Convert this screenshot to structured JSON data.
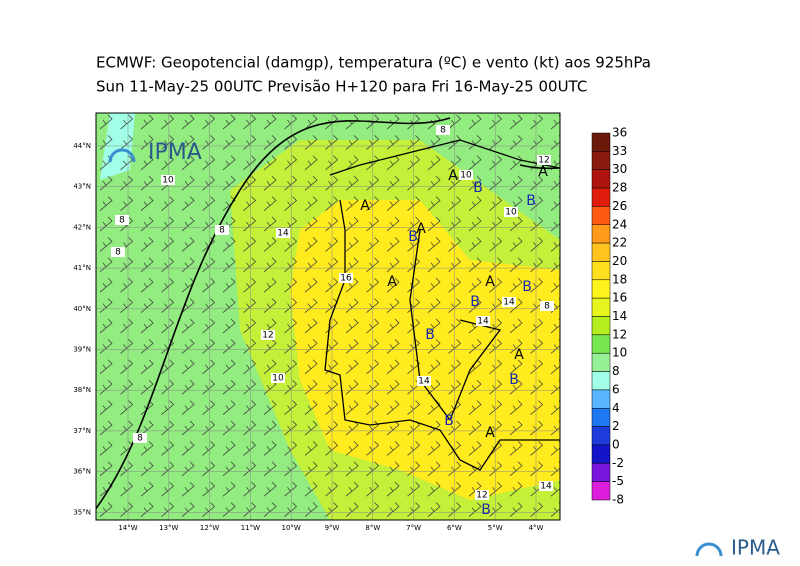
{
  "title": "ECMWF:  Geopotencial (damgp), temperatura (ºC) e vento (kt) aos 925hPa",
  "subtitle": "Sun 11-May-25 00UTC Previsão H+120 para Fri 16-May-25 00UTC",
  "map": {
    "lat_labels": [
      "44°N",
      "43°N",
      "42°N",
      "41°N",
      "40°N",
      "39°N",
      "38°N",
      "37°N",
      "36°N",
      "35°N"
    ],
    "lon_labels": [
      "14°W",
      "13°W",
      "12°W",
      "11°W",
      "10°W",
      "9°W",
      "8°W",
      "7°W",
      "6°W",
      "5°W",
      "4°W"
    ],
    "pressure_centers": [
      "A",
      "B",
      "A",
      "B",
      "A",
      "A",
      "B",
      "A",
      "A",
      "B",
      "B",
      "B",
      "A",
      "B",
      "B",
      "A",
      "B"
    ],
    "contour_labels": [
      8,
      12,
      10,
      10,
      8,
      8,
      8,
      14,
      10,
      16,
      14,
      14,
      8,
      12,
      10,
      14,
      8,
      12,
      14
    ]
  },
  "colorbar": {
    "labels": [
      36,
      33,
      30,
      28,
      26,
      24,
      22,
      20,
      18,
      16,
      14,
      12,
      10,
      8,
      6,
      4,
      2,
      0,
      -2,
      -5,
      -8
    ],
    "colors": [
      "#6b1a0a",
      "#8b1a10",
      "#b0140f",
      "#e01c0c",
      "#ff5a14",
      "#ff9a1a",
      "#ffc41e",
      "#ffe01e",
      "#fff31e",
      "#e6f51e",
      "#b4ee1e",
      "#78e650",
      "#96f096",
      "#a0ffe6",
      "#5ab4ff",
      "#1e78f0",
      "#1e3cdc",
      "#1414c8",
      "#7814dc",
      "#dc1edc"
    ]
  },
  "logos": [
    "IPMA",
    "IPMA"
  ]
}
